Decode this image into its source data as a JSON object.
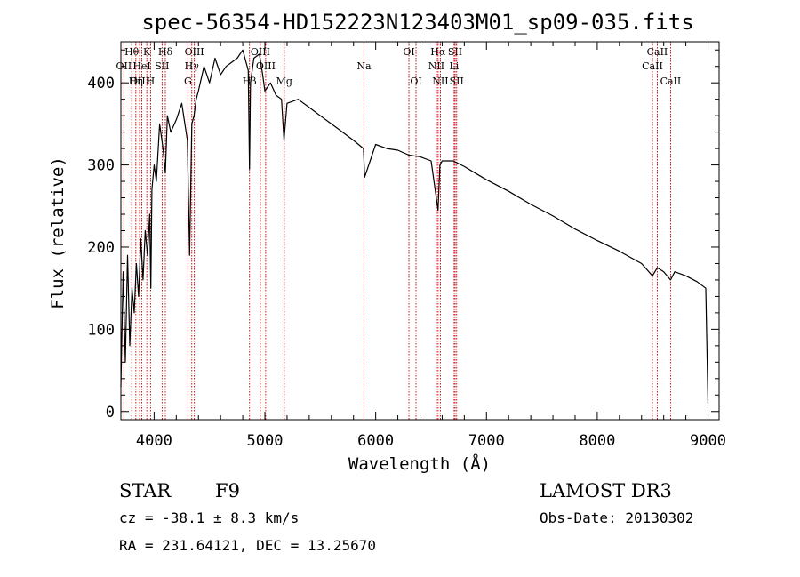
{
  "chart_data": {
    "type": "line",
    "title": "spec-56354-HD152223N123403M01_sp09-035.fits",
    "xlabel": "Wavelength (Å)",
    "ylabel": "Flux (relative)",
    "xlim": [
      3700,
      9100
    ],
    "ylim": [
      -10,
      450
    ],
    "xticks": [
      4000,
      5000,
      6000,
      7000,
      8000,
      9000
    ],
    "yticks": [
      0,
      100,
      200,
      300,
      400
    ],
    "series": [
      {
        "name": "flux",
        "x": [
          3700,
          3720,
          3740,
          3760,
          3780,
          3800,
          3820,
          3840,
          3860,
          3880,
          3900,
          3920,
          3940,
          3960,
          3970,
          3980,
          4000,
          4020,
          4050,
          4080,
          4101,
          4120,
          4150,
          4200,
          4250,
          4300,
          4320,
          4340,
          4360,
          4380,
          4400,
          4450,
          4500,
          4550,
          4600,
          4650,
          4700,
          4750,
          4800,
          4850,
          4861,
          4870,
          4900,
          4950,
          4980,
          5000,
          5050,
          5100,
          5150,
          5172,
          5200,
          5300,
          5400,
          5500,
          5600,
          5700,
          5800,
          5890,
          5900,
          6000,
          6100,
          6200,
          6300,
          6400,
          6500,
          6563,
          6580,
          6600,
          6700,
          6800,
          6900,
          7000,
          7200,
          7400,
          7600,
          7800,
          8000,
          8200,
          8400,
          8498,
          8542,
          8600,
          8662,
          8700,
          8800,
          8900,
          8980,
          9000
        ],
        "values": [
          30,
          170,
          60,
          190,
          80,
          150,
          120,
          180,
          140,
          210,
          160,
          220,
          190,
          240,
          150,
          270,
          300,
          280,
          350,
          320,
          290,
          360,
          340,
          355,
          375,
          330,
          190,
          350,
          360,
          380,
          390,
          420,
          400,
          430,
          410,
          420,
          425,
          430,
          440,
          415,
          295,
          400,
          430,
          435,
          410,
          390,
          400,
          385,
          380,
          330,
          375,
          380,
          370,
          360,
          350,
          340,
          330,
          320,
          285,
          325,
          320,
          318,
          312,
          310,
          305,
          245,
          300,
          305,
          305,
          298,
          290,
          282,
          268,
          252,
          238,
          222,
          208,
          195,
          180,
          165,
          175,
          170,
          160,
          170,
          165,
          158,
          150,
          10
        ]
      }
    ],
    "lines": [
      {
        "label": "Hθ",
        "x": 3798,
        "row": 1
      },
      {
        "label": "OII",
        "x": 3727,
        "row": 2
      },
      {
        "label": "OIII",
        "x": 3869,
        "row": 3
      },
      {
        "label": "HeI",
        "x": 3889,
        "row": 2
      },
      {
        "label": "Hη",
        "x": 3835,
        "row": 3
      },
      {
        "label": "K",
        "x": 3934,
        "row": 1
      },
      {
        "label": "H",
        "x": 3968,
        "row": 3
      },
      {
        "label": "SII",
        "x": 4072,
        "row": 2
      },
      {
        "label": "Hδ",
        "x": 4101,
        "row": 1
      },
      {
        "label": "OIII",
        "x": 4363,
        "row": 1
      },
      {
        "label": "Hγ",
        "x": 4340,
        "row": 2
      },
      {
        "label": "G",
        "x": 4305,
        "row": 3
      },
      {
        "label": "Hβ",
        "x": 4861,
        "row": 3
      },
      {
        "label": "OIII",
        "x": 4959,
        "row": 1
      },
      {
        "label": "OIII",
        "x": 5007,
        "row": 2
      },
      {
        "label": "Mg",
        "x": 5175,
        "row": 3
      },
      {
        "label": "Na",
        "x": 5894,
        "row": 2
      },
      {
        "label": "OI",
        "x": 6300,
        "row": 1
      },
      {
        "label": "OI",
        "x": 6364,
        "row": 3
      },
      {
        "label": "Hα",
        "x": 6563,
        "row": 1
      },
      {
        "label": "NII",
        "x": 6548,
        "row": 2
      },
      {
        "label": "NII",
        "x": 6584,
        "row": 3
      },
      {
        "label": "SII",
        "x": 6717,
        "row": 1
      },
      {
        "label": "Li",
        "x": 6708,
        "row": 2
      },
      {
        "label": "SII",
        "x": 6731,
        "row": 3
      },
      {
        "label": "CaII",
        "x": 8542,
        "row": 1
      },
      {
        "label": "CaII",
        "x": 8498,
        "row": 2
      },
      {
        "label": "CaII",
        "x": 8662,
        "row": 3
      }
    ]
  },
  "info": {
    "object_class": "STAR",
    "subclass": "F9",
    "survey": "LAMOST DR3",
    "redshift": "cz = -38.1 ± 8.3 km/s",
    "obs_date": "Obs-Date: 20130302",
    "coords": "RA = 231.64121, DEC =  13.25670"
  },
  "colors": {
    "spectrum": "#000000",
    "line_marker": "#c00000",
    "axis": "#000000"
  }
}
